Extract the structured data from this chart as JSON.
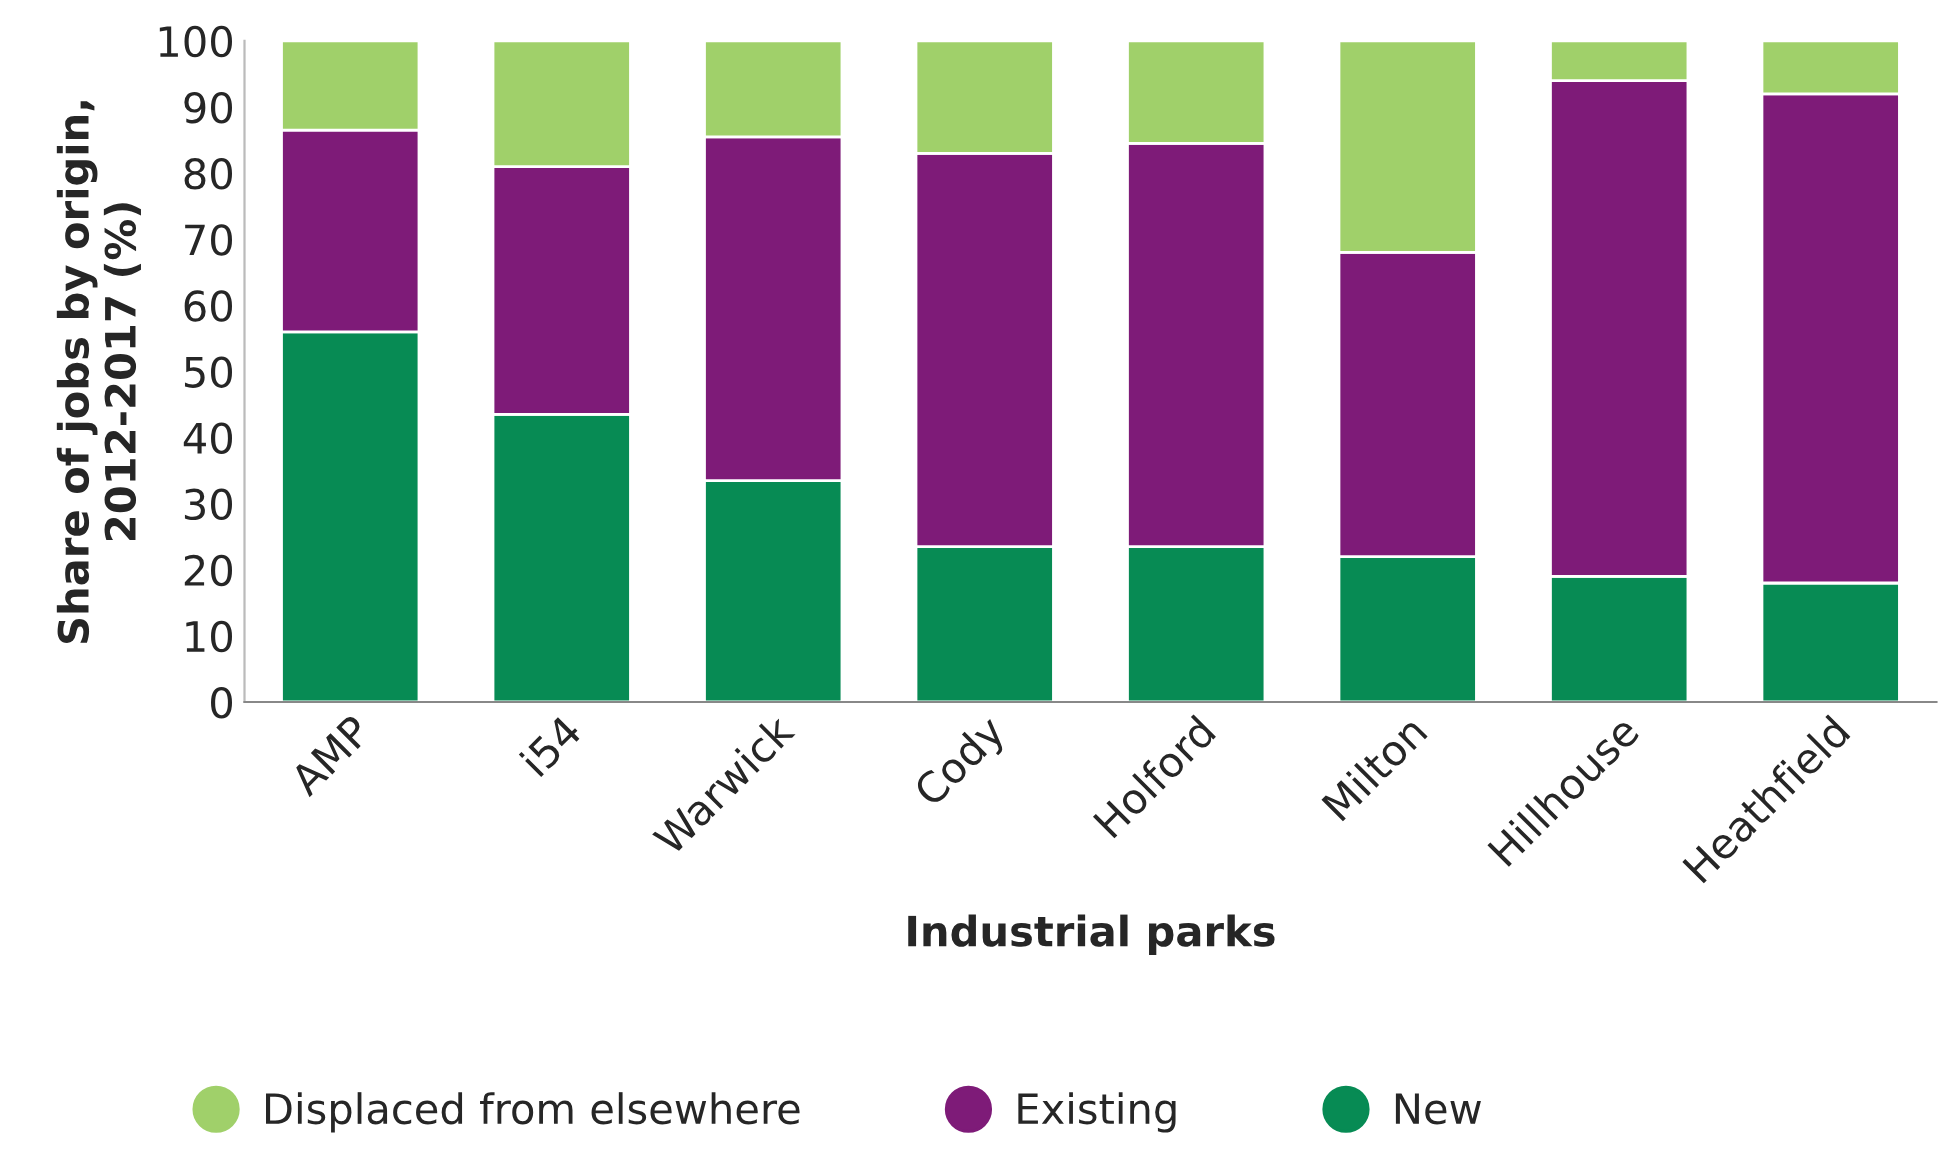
{
  "chart_data": {
    "type": "bar",
    "stacked": true,
    "xlabel": "Industrial parks",
    "ylabel": "Share of jobs by origin,\n2012-2017 (%)",
    "categories": [
      "AMP",
      "i54",
      "Warwick",
      "Cody",
      "Holford",
      "Milton",
      "Hillhouse",
      "Heathfield"
    ],
    "series": [
      {
        "name": "New",
        "color": "#078b54",
        "values": [
          56,
          43.5,
          33.5,
          23.5,
          23.5,
          22,
          19,
          18
        ]
      },
      {
        "name": "Existing",
        "color": "#7e1b78",
        "values": [
          30.5,
          37.5,
          52,
          59.5,
          61,
          46,
          75,
          74
        ]
      },
      {
        "name": "Displaced from elsewhere",
        "color": "#a0d06a",
        "values": [
          13.5,
          19,
          14.5,
          17,
          15.5,
          32,
          6,
          8
        ]
      }
    ],
    "ylim": [
      0,
      100
    ],
    "yticks": [
      0,
      10,
      20,
      30,
      40,
      50,
      60,
      70,
      80,
      90,
      100
    ],
    "grid": false,
    "legend": "bottom"
  }
}
